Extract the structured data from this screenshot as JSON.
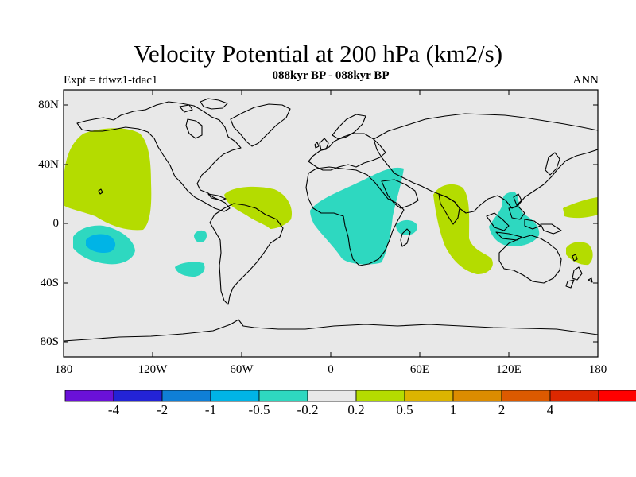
{
  "header": {
    "title": "Velocity Potential at 200 hPa (km2/s)",
    "subtitle": "088kyr BP - 088kyr BP",
    "expt": "Expt = tdwz1-tdac1",
    "season": "ANN"
  },
  "axes": {
    "y_ticks": [
      "80N",
      "40N",
      "0",
      "40S",
      "80S"
    ],
    "x_ticks": [
      "180",
      "120W",
      "60W",
      "0",
      "60E",
      "120E",
      "180"
    ]
  },
  "colorbar": {
    "colors": [
      "#6a11d8",
      "#2323d6",
      "#0f7fd6",
      "#00b4e6",
      "#2ed8c0",
      "#e8e8e8",
      "#b4dc00",
      "#dcb400",
      "#dc8c00",
      "#dc5a00",
      "#dc2800",
      "#ff0000"
    ],
    "labels": [
      "-4",
      "-2",
      "-1",
      "-0.5",
      "-0.2",
      "0.2",
      "0.5",
      "1",
      "2",
      "4"
    ]
  },
  "colors": {
    "land_background": "#e8e8e8",
    "positive_fill": "#b4dc00",
    "negative_fill": "#2ed8c0",
    "strong_negative_fill": "#00b4e6",
    "coastline": "#000000"
  }
}
